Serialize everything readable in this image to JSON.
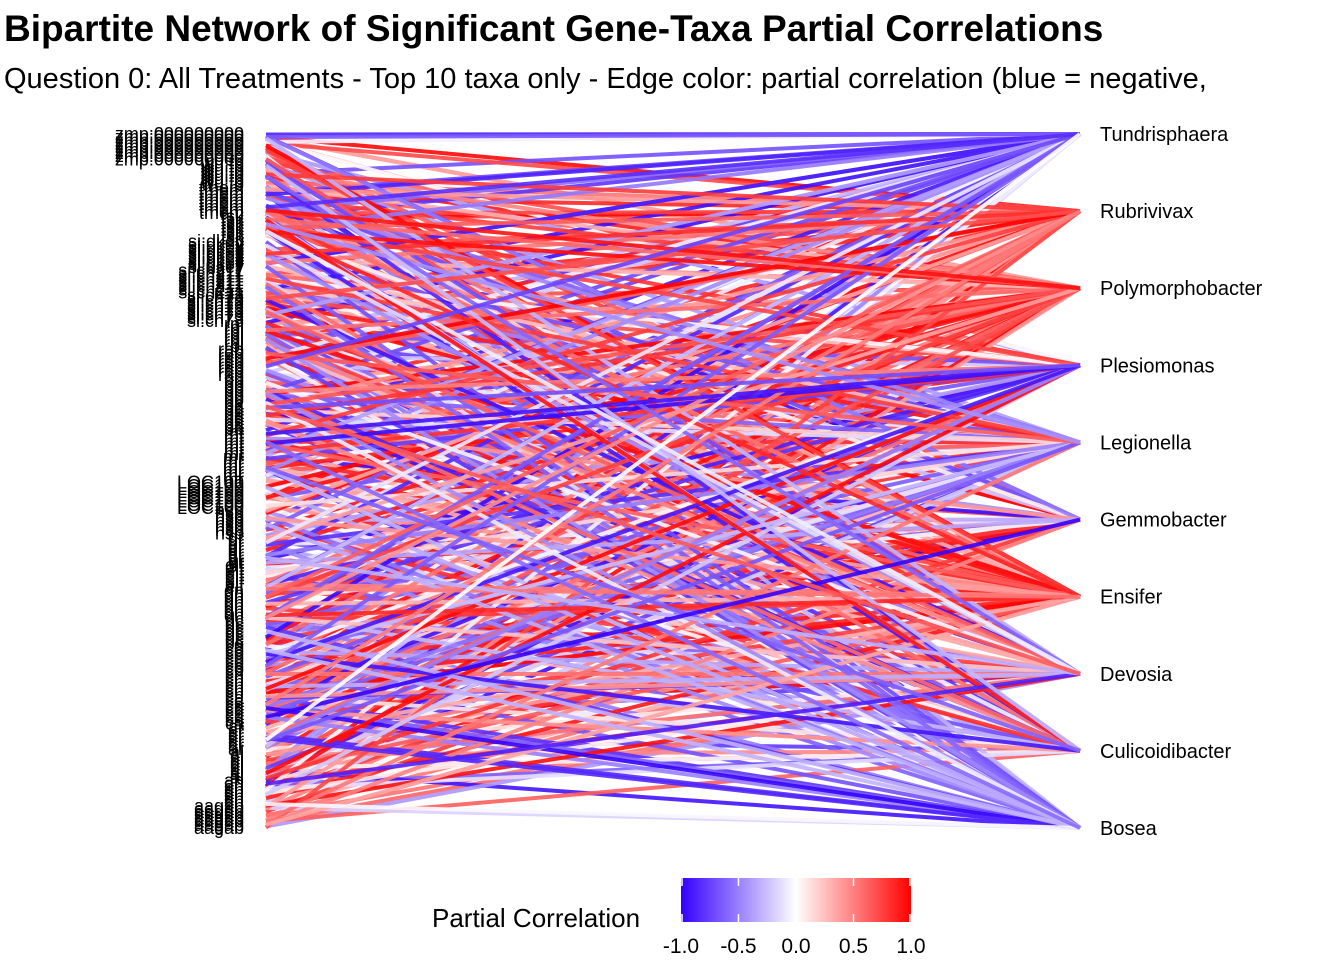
{
  "title": "Bipartite Network of Significant Gene-Taxa Partial Correlations",
  "subtitle": "Question 0: All Treatments - Top 10 taxa only - Edge color: partial correlation (blue = negative,",
  "chart_data": {
    "type": "bipartite-network",
    "taxa": [
      "Tundrisphaera",
      "Rubrivivax",
      "Polymorphobacter",
      "Plesiomonas",
      "Legionella",
      "Gemmobacter",
      "Ensifer",
      "Devosia",
      "Culicoidibacter",
      "Bosea"
    ],
    "gene_labels_visible": [
      "zmp:000000000",
      "wu:fb",
      "tmem",
      "tsk",
      "si:dkey",
      "si:ch211",
      "si:ch73",
      "rpl",
      "rab",
      "pp",
      "pa",
      "mt",
      "mr",
      "LOC100",
      "hsp",
      "gr",
      "elf",
      "dn",
      "dc",
      "co",
      "ch",
      "ca",
      "ar",
      "al",
      "ah",
      "aagab"
    ],
    "color_scale": {
      "name": "Partial Correlation",
      "low": "#3300ff",
      "mid": "#ffffff",
      "high": "#ff0000",
      "domain": [
        -1.0,
        1.0
      ]
    },
    "legend_ticks": [
      "-1.0",
      "-0.5",
      "0.0",
      "0.5",
      "1.0"
    ],
    "legend_position": "bottom"
  }
}
